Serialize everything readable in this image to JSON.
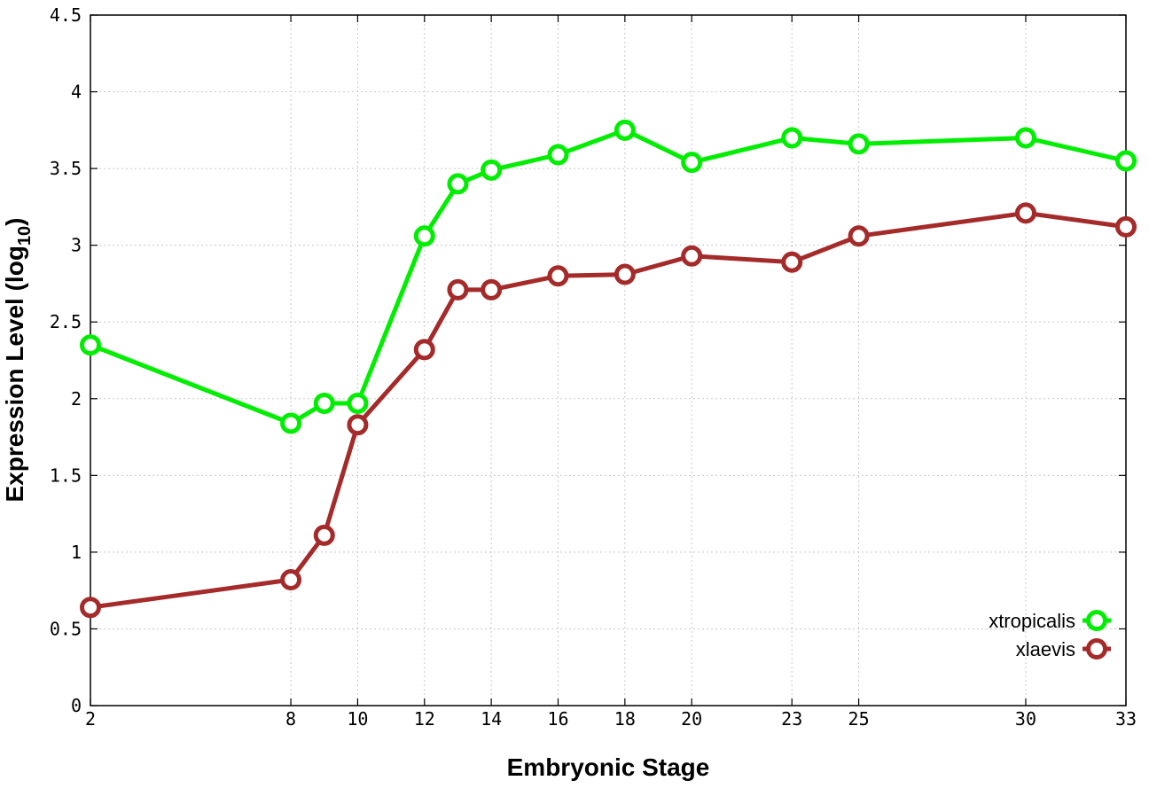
{
  "chart_data": {
    "type": "line",
    "xlabel": "Embryonic Stage",
    "ylabel_main": "Expression Level (log",
    "ylabel_sub": "10",
    "ylabel_close": ")",
    "x_ticks": [
      2,
      8,
      10,
      12,
      14,
      16,
      18,
      20,
      23,
      25,
      30,
      33
    ],
    "y_ticks": [
      "0",
      "0.5",
      "1",
      "1.5",
      "2",
      "2.5",
      "3",
      "3.5",
      "4",
      "4.5"
    ],
    "xlim": [
      2,
      33
    ],
    "ylim": [
      0,
      4.5
    ],
    "grid": true,
    "legend_position": "bottom-right",
    "series": [
      {
        "name": "xtropicalis",
        "color": "#00ee00",
        "marker": "open-circle",
        "points": [
          [
            2,
            2.35
          ],
          [
            8,
            1.84
          ],
          [
            9,
            1.97
          ],
          [
            10,
            1.97
          ],
          [
            12,
            3.06
          ],
          [
            13,
            3.4
          ],
          [
            14,
            3.49
          ],
          [
            16,
            3.59
          ],
          [
            18,
            3.75
          ],
          [
            20,
            3.54
          ],
          [
            23,
            3.7
          ],
          [
            25,
            3.66
          ],
          [
            30,
            3.7
          ],
          [
            33,
            3.55
          ]
        ]
      },
      {
        "name": "xlaevis",
        "color": "#a52a2a",
        "marker": "open-circle",
        "points": [
          [
            2,
            0.64
          ],
          [
            8,
            0.82
          ],
          [
            9,
            1.11
          ],
          [
            10,
            1.83
          ],
          [
            12,
            2.32
          ],
          [
            13,
            2.71
          ],
          [
            14,
            2.71
          ],
          [
            16,
            2.8
          ],
          [
            18,
            2.81
          ],
          [
            20,
            2.93
          ],
          [
            23,
            2.89
          ],
          [
            25,
            3.06
          ],
          [
            30,
            3.21
          ],
          [
            33,
            3.12
          ]
        ]
      }
    ]
  }
}
